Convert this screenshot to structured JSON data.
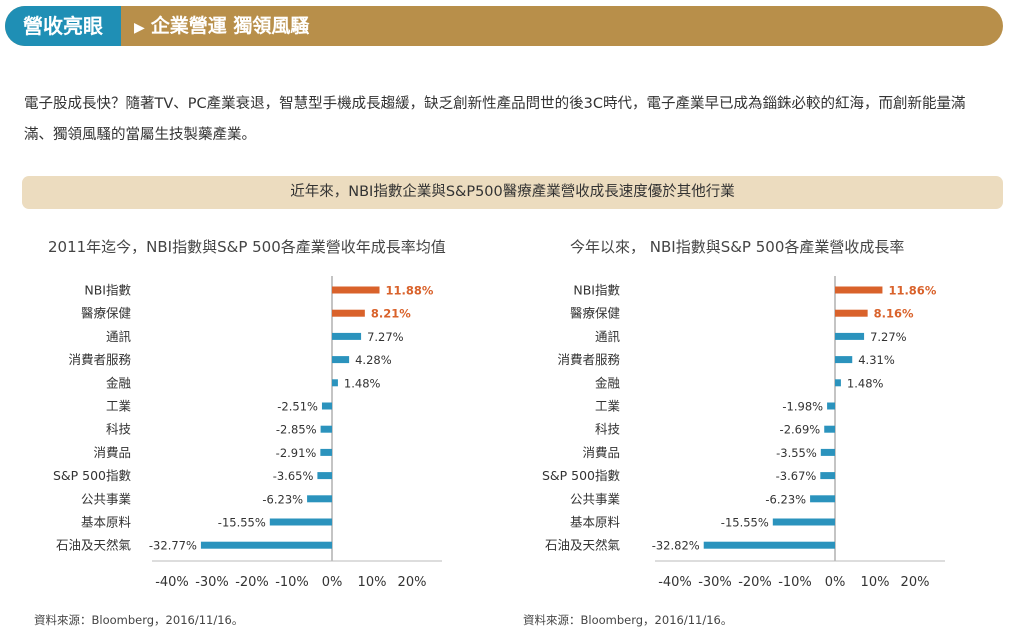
{
  "header": {
    "badge": "營收亮眼",
    "arrow": "▶",
    "title": "企業營運 獨領風騷"
  },
  "intro": "電子股成長快？隨著TV、PC產業衰退，智慧型手機成長趨緩，缺乏創新性產品問世的後3C時代，電子產業早已成為錙銖必較的紅海，而創新能量滿滿、獨領風騷的當屬生技製藥產業。",
  "banner": "近年來，NBI指數企業與S&P500醫療產業營收成長速度優於其他行業",
  "colors": {
    "highlight": "#d9622b",
    "normal": "#2b93bd",
    "axis": "#888888"
  },
  "chart_data": [
    {
      "type": "bar",
      "orientation": "horizontal",
      "title": "2011年迄今，NBI指數與S&P 500各產業營收年成長率均值",
      "categories": [
        "NBI指數",
        "醫療保健",
        "通訊",
        "消費者服務",
        "金融",
        "工業",
        "科技",
        "消費品",
        "S&P 500指數",
        "公共事業",
        "基本原料",
        "石油及天然氣"
      ],
      "values": [
        11.88,
        8.21,
        7.27,
        4.28,
        1.48,
        -2.51,
        -2.85,
        -2.91,
        -3.65,
        -6.23,
        -15.55,
        -32.77
      ],
      "labels": [
        "11.88%",
        "8.21%",
        "7.27%",
        "4.28%",
        "1.48%",
        "-2.51%",
        "-2.85%",
        "-2.91%",
        "-3.65%",
        "-6.23%",
        "-15.55%",
        "-32.77%"
      ],
      "highlighted": [
        0,
        1
      ],
      "xlim": [
        -40,
        20
      ],
      "xticks": [
        "-40%",
        "-30%",
        "-20%",
        "-10%",
        "0%",
        "10%",
        "20%"
      ],
      "source": "資料來源：Bloomberg，2016/11/16。"
    },
    {
      "type": "bar",
      "orientation": "horizontal",
      "title": "今年以來， NBI指數與S&P 500各產業營收成長率",
      "categories": [
        "NBI指數",
        "醫療保健",
        "通訊",
        "消費者服務",
        "金融",
        "工業",
        "科技",
        "消費品",
        "S&P 500指數",
        "公共事業",
        "基本原料",
        "石油及天然氣"
      ],
      "values": [
        11.86,
        8.16,
        7.27,
        4.31,
        1.48,
        -1.98,
        -2.69,
        -3.55,
        -3.67,
        -6.23,
        -15.55,
        -32.82
      ],
      "labels": [
        "11.86%",
        "8.16%",
        "7.27%",
        "4.31%",
        "1.48%",
        "-1.98%",
        "-2.69%",
        "-3.55%",
        "-3.67%",
        "-6.23%",
        "-15.55%",
        "-32.82%"
      ],
      "highlighted": [
        0,
        1
      ],
      "xlim": [
        -40,
        20
      ],
      "xticks": [
        "-40%",
        "-30%",
        "-20%",
        "-10%",
        "0%",
        "10%",
        "20%"
      ],
      "source": "資料來源：Bloomberg，2016/11/16。"
    }
  ]
}
